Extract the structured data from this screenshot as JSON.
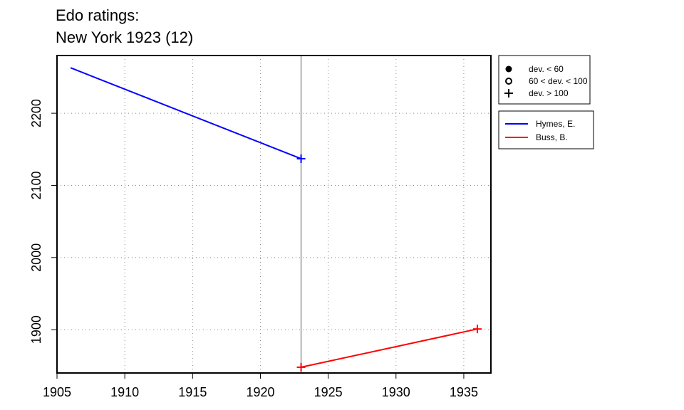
{
  "chart_data": {
    "type": "line",
    "title": "Edo ratings:",
    "subtitle": "New York 1923 (12)",
    "xlabel": "",
    "ylabel": "",
    "xlim": [
      1905,
      1937
    ],
    "ylim": [
      1840,
      2280
    ],
    "x_ticks": [
      1905,
      1910,
      1915,
      1920,
      1925,
      1930,
      1935
    ],
    "y_ticks": [
      1900,
      2000,
      2100,
      2200
    ],
    "grid": true,
    "vertical_line_x": 1923,
    "series": [
      {
        "name": "Hymes, E.",
        "color": "#0000ff",
        "points": [
          {
            "x": 1906,
            "y": 2263,
            "marker": "none"
          },
          {
            "x": 1923,
            "y": 2137,
            "marker": "plus"
          }
        ]
      },
      {
        "name": "Buss, B.",
        "color": "#ff0000",
        "points": [
          {
            "x": 1923,
            "y": 1848,
            "marker": "plus"
          },
          {
            "x": 1936,
            "y": 1901,
            "marker": "plus"
          }
        ]
      }
    ],
    "marker_legend": [
      {
        "marker": "filled-circle",
        "label": "dev. < 60"
      },
      {
        "marker": "open-circle",
        "label": "60 < dev. < 100"
      },
      {
        "marker": "plus",
        "label": "dev. > 100"
      }
    ],
    "legend_placement": "outside-right"
  }
}
